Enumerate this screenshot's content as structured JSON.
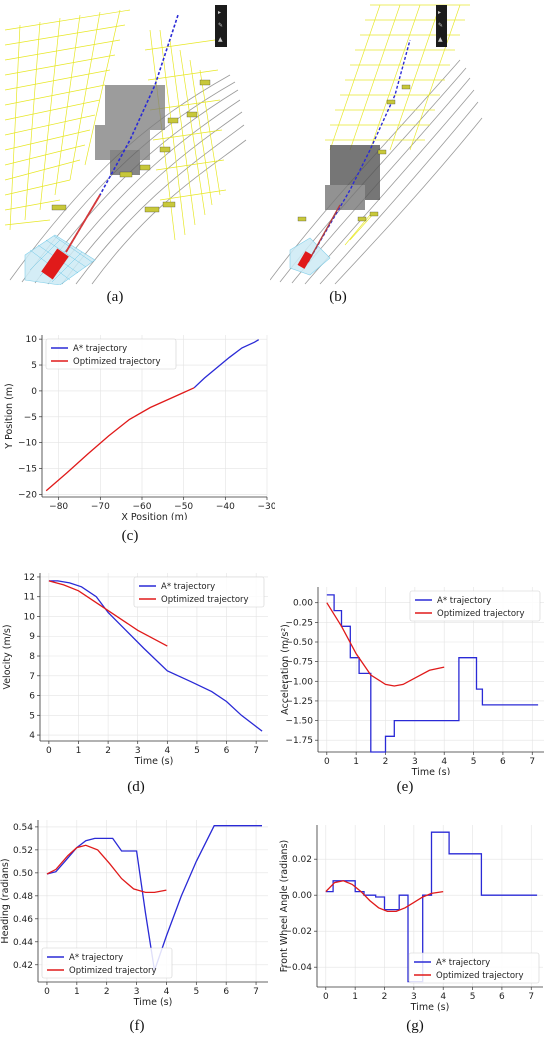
{
  "captions": {
    "a": "(a)",
    "b": "(b)",
    "c": "(c)",
    "d": "(d)",
    "e": "(e)",
    "f": "(f)",
    "g": "(g)"
  },
  "colors": {
    "astar": "#2a2ad6",
    "optimized": "#e01a1a",
    "lane_yellow": "#e6e61a",
    "grid": "#e3e3e3"
  },
  "chart_data": [
    {
      "id": "c",
      "type": "line",
      "xlabel": "X Position (m)",
      "ylabel": "Y Position (m)",
      "xlim": [
        -84,
        -30
      ],
      "ylim": [
        -20.5,
        10.8
      ],
      "xticks": [
        -80,
        -70,
        -60,
        -50,
        -40,
        -30
      ],
      "yticks": [
        -20,
        -15,
        -10,
        -5,
        0,
        5,
        10
      ],
      "legend": "top-left",
      "grid": true,
      "series": [
        {
          "name": "A* trajectory",
          "color": "#2a2ad6",
          "x": [
            -47.5,
            -45,
            -42,
            -39,
            -36,
            -33,
            -32
          ],
          "y": [
            0.6,
            2.5,
            4.5,
            6.5,
            8.3,
            9.4,
            9.9
          ]
        },
        {
          "name": "Optimized trajectory",
          "color": "#e01a1a",
          "x": [
            -83,
            -78,
            -73,
            -68,
            -63,
            -58,
            -53,
            -50,
            -47.5
          ],
          "y": [
            -19.3,
            -15.8,
            -12.2,
            -8.7,
            -5.5,
            -3.2,
            -1.4,
            -0.3,
            0.6
          ]
        }
      ]
    },
    {
      "id": "d",
      "type": "line",
      "xlabel": "Time (s)",
      "ylabel": "Velocity (m/s)",
      "xlim": [
        -0.3,
        7.4
      ],
      "ylim": [
        3.7,
        12.2
      ],
      "xticks": [
        0,
        1,
        2,
        3,
        4,
        5,
        6,
        7
      ],
      "yticks": [
        4,
        5,
        6,
        7,
        8,
        9,
        10,
        11,
        12
      ],
      "legend": "top-right",
      "grid": true,
      "series": [
        {
          "name": "A* trajectory",
          "color": "#2a2ad6",
          "x": [
            0,
            0.3,
            0.7,
            1.1,
            1.6,
            2.0,
            2.6,
            3.2,
            4.0,
            4.8,
            5.5,
            6.0,
            6.5,
            7.2
          ],
          "y": [
            11.8,
            11.8,
            11.7,
            11.5,
            11.0,
            10.2,
            9.3,
            8.4,
            7.25,
            6.7,
            6.2,
            5.7,
            5.0,
            4.2
          ]
        },
        {
          "name": "Optimized trajectory",
          "color": "#e01a1a",
          "x": [
            0,
            0.5,
            1.0,
            1.5,
            2.0,
            2.5,
            3.0,
            3.5,
            4.0
          ],
          "y": [
            11.8,
            11.6,
            11.3,
            10.8,
            10.3,
            9.8,
            9.3,
            8.9,
            8.5
          ]
        }
      ]
    },
    {
      "id": "e",
      "type": "line",
      "xlabel": "Time (s)",
      "ylabel": "Acceleration (m/s²)",
      "xlim": [
        -0.3,
        7.4
      ],
      "ylim": [
        -1.9,
        0.2
      ],
      "xticks": [
        0,
        1,
        2,
        3,
        4,
        5,
        6,
        7
      ],
      "yticks": [
        0.0,
        -0.25,
        -0.5,
        -0.75,
        -1.0,
        -1.25,
        -1.5,
        -1.75
      ],
      "ytick_labels": [
        "0.00",
        "−0.25",
        "−0.50",
        "−0.75",
        "−1.00",
        "−1.25",
        "−1.50",
        "−1.75"
      ],
      "legend": "top-right",
      "grid": true,
      "series": [
        {
          "name": "A* trajectory",
          "color": "#2a2ad6",
          "x": [
            0,
            0.25,
            0.25,
            0.5,
            0.5,
            0.8,
            0.8,
            1.1,
            1.1,
            1.3,
            1.3,
            1.5,
            1.5,
            1.75,
            1.75,
            2.0,
            2.0,
            2.3,
            2.3,
            2.5,
            2.5,
            4.0,
            4.0,
            4.5,
            4.5,
            5.1,
            5.1,
            5.3,
            5.3,
            5.6,
            5.6,
            7.2
          ],
          "y": [
            0.1,
            0.1,
            -0.1,
            -0.1,
            -0.3,
            -0.3,
            -0.7,
            -0.7,
            -0.9,
            -0.9,
            -0.9,
            -0.9,
            -1.9,
            -1.9,
            -1.9,
            -1.9,
            -1.7,
            -1.7,
            -1.5,
            -1.5,
            -1.5,
            -1.5,
            -1.5,
            -1.5,
            -0.7,
            -0.7,
            -1.1,
            -1.1,
            -1.3,
            -1.3,
            -1.3,
            -1.3
          ]
        },
        {
          "name": "Optimized trajectory",
          "color": "#e01a1a",
          "x": [
            0,
            0.5,
            1.0,
            1.5,
            2.0,
            2.3,
            2.6,
            3.0,
            3.5,
            4.0
          ],
          "y": [
            0.0,
            -0.3,
            -0.65,
            -0.92,
            -1.04,
            -1.06,
            -1.04,
            -0.96,
            -0.86,
            -0.82
          ]
        }
      ]
    },
    {
      "id": "f",
      "type": "line",
      "xlabel": "Time (s)",
      "ylabel": "Heading (radians)",
      "xlim": [
        -0.3,
        7.4
      ],
      "ylim": [
        0.405,
        0.546
      ],
      "xticks": [
        0,
        1,
        2,
        3,
        4,
        5,
        6,
        7
      ],
      "yticks": [
        0.42,
        0.44,
        0.46,
        0.48,
        0.5,
        0.52,
        0.54
      ],
      "ytick_labels": [
        "0.42",
        "0.44",
        "0.46",
        "0.48",
        "0.50",
        "0.52",
        "0.54"
      ],
      "legend": "bottom-left",
      "grid": true,
      "series": [
        {
          "name": "A* trajectory",
          "color": "#2a2ad6",
          "x": [
            0,
            0.3,
            0.6,
            1.0,
            1.3,
            1.6,
            2.2,
            2.5,
            3.0,
            3.3,
            3.6,
            4.0,
            4.5,
            5.0,
            5.6,
            6.0,
            7.2
          ],
          "y": [
            0.499,
            0.501,
            0.51,
            0.522,
            0.528,
            0.53,
            0.53,
            0.519,
            0.519,
            0.465,
            0.415,
            0.445,
            0.48,
            0.51,
            0.541,
            0.541,
            0.541
          ]
        },
        {
          "name": "Optimized trajectory",
          "color": "#e01a1a",
          "x": [
            0,
            0.3,
            0.7,
            1.0,
            1.3,
            1.7,
            2.1,
            2.5,
            2.9,
            3.3,
            3.6,
            4.0
          ],
          "y": [
            0.499,
            0.503,
            0.515,
            0.522,
            0.524,
            0.52,
            0.508,
            0.495,
            0.486,
            0.483,
            0.483,
            0.485
          ]
        }
      ]
    },
    {
      "id": "g",
      "type": "line",
      "xlabel": "Time (s)",
      "ylabel": "Front Wheel Angle (radians)",
      "xlim": [
        -0.3,
        7.4
      ],
      "ylim": [
        -0.051,
        0.039
      ],
      "xticks": [
        0,
        1,
        2,
        3,
        4,
        5,
        6,
        7
      ],
      "yticks": [
        0.02,
        0.0,
        -0.02,
        -0.04
      ],
      "ytick_labels": [
        "0.02",
        "0.00",
        "−0.02",
        "−0.04"
      ],
      "legend": "bottom-right",
      "grid": true,
      "series": [
        {
          "name": "A* trajectory",
          "color": "#2a2ad6",
          "x": [
            0,
            0.25,
            0.25,
            0.5,
            0.5,
            1.0,
            1.0,
            1.3,
            1.3,
            1.7,
            1.7,
            2.0,
            2.0,
            2.3,
            2.3,
            2.5,
            2.5,
            2.8,
            2.8,
            3.3,
            3.3,
            3.6,
            3.6,
            4.2,
            4.2,
            5.0,
            5.0,
            5.3,
            5.3,
            7.2
          ],
          "y": [
            0.002,
            0.002,
            0.008,
            0.008,
            0.008,
            0.008,
            0.002,
            0.002,
            0.0,
            0.0,
            -0.001,
            -0.001,
            -0.008,
            -0.008,
            -0.008,
            -0.008,
            0.0,
            0.0,
            -0.048,
            -0.048,
            0.0,
            0.0,
            0.035,
            0.035,
            0.023,
            0.023,
            0.023,
            0.023,
            0.0,
            0.0
          ]
        },
        {
          "name": "Optimized trajectory",
          "color": "#e01a1a",
          "x": [
            0,
            0.3,
            0.6,
            0.9,
            1.2,
            1.5,
            1.8,
            2.1,
            2.4,
            2.7,
            3.0,
            3.3,
            3.6,
            4.0
          ],
          "y": [
            0.002,
            0.007,
            0.008,
            0.006,
            0.002,
            -0.003,
            -0.007,
            -0.009,
            -0.009,
            -0.007,
            -0.004,
            -0.001,
            0.001,
            0.002
          ]
        }
      ]
    }
  ]
}
